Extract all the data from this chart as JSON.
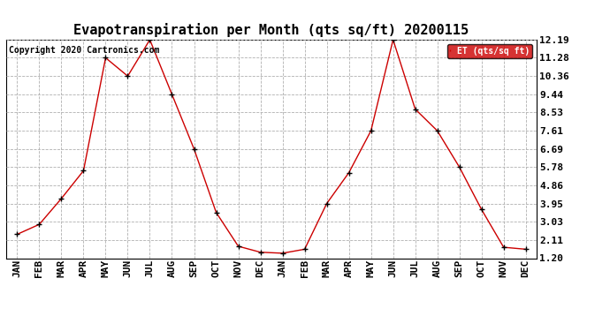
{
  "title": "Evapotranspiration per Month (qts sq/ft) 20200115",
  "copyright_text": "Copyright 2020 Cartronics.com",
  "legend_label": "ET (qts/sq ft)",
  "x_labels": [
    "JAN",
    "FEB",
    "MAR",
    "APR",
    "MAY",
    "JUN",
    "JUL",
    "AUG",
    "SEP",
    "OCT",
    "NOV",
    "DEC",
    "JAN",
    "FEB",
    "MAR",
    "APR",
    "MAY",
    "JUN",
    "JUL",
    "AUG",
    "SEP",
    "OCT",
    "NOV",
    "DEC"
  ],
  "y_values": [
    2.4,
    2.9,
    4.2,
    5.6,
    11.28,
    10.36,
    12.19,
    9.44,
    6.69,
    3.5,
    1.8,
    1.5,
    1.45,
    1.65,
    3.95,
    5.5,
    7.61,
    12.19,
    8.7,
    7.61,
    5.78,
    3.65,
    1.75,
    1.65
  ],
  "y_ticks": [
    1.2,
    2.11,
    3.03,
    3.95,
    4.86,
    5.78,
    6.69,
    7.61,
    8.53,
    9.44,
    10.36,
    11.28,
    12.19
  ],
  "line_color": "#cc0000",
  "marker_color": "#000000",
  "legend_bg": "#cc0000",
  "legend_text_color": "#ffffff",
  "grid_color": "#b0b0b0",
  "title_fontsize": 11,
  "copyright_fontsize": 7,
  "tick_fontsize": 8,
  "ylim": [
    1.2,
    12.19
  ],
  "background_color": "#ffffff"
}
